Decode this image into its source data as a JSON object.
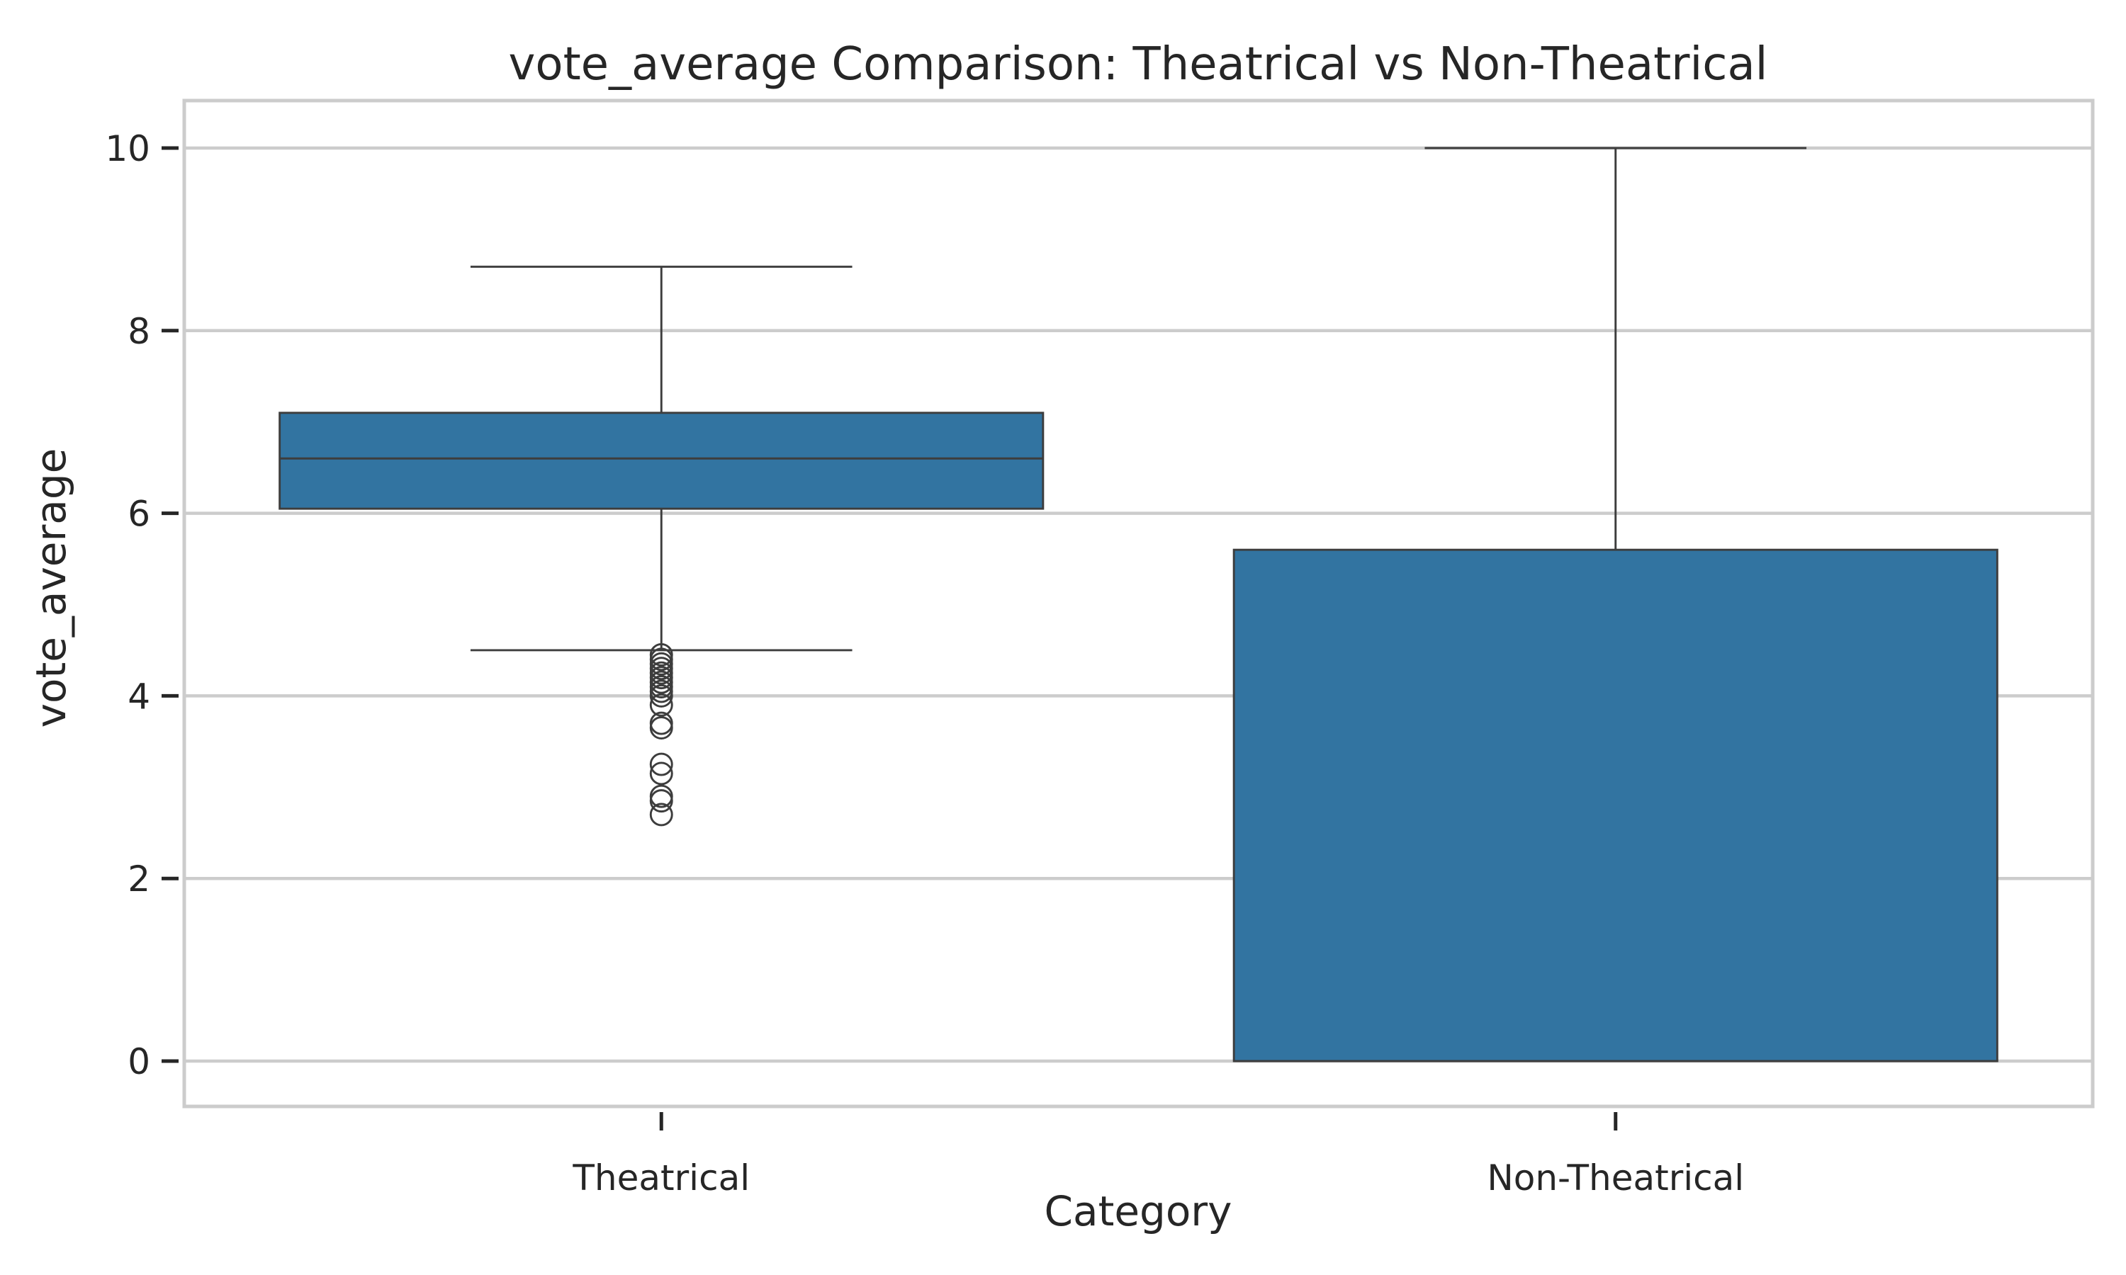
{
  "chart_data": {
    "type": "box",
    "title": "vote_average Comparison: Theatrical vs Non-Theatrical",
    "xlabel": "Category",
    "ylabel": "vote_average",
    "categories": [
      "Theatrical",
      "Non-Theatrical"
    ],
    "y_ticks": [
      0,
      2,
      4,
      6,
      8,
      10
    ],
    "y_tick_labels": [
      "0",
      "2",
      "4",
      "6",
      "8",
      "10"
    ],
    "ylim": [
      -0.5,
      10.5
    ],
    "grid": true,
    "boxes": [
      {
        "category": "Theatrical",
        "whisker_low": 4.5,
        "q1": 6.05,
        "median": 6.6,
        "q3": 7.1,
        "whisker_high": 8.7,
        "outliers": [
          4.45,
          4.4,
          4.35,
          4.3,
          4.25,
          4.2,
          4.15,
          4.1,
          4.05,
          4.0,
          3.9,
          3.7,
          3.65,
          3.25,
          3.15,
          2.9,
          2.85,
          2.7
        ]
      },
      {
        "category": "Non-Theatrical",
        "whisker_low": 0,
        "q1": 0,
        "median": 0,
        "q3": 5.6,
        "whisker_high": 10,
        "outliers": []
      }
    ],
    "colors": {
      "box_fill": "#3274a1",
      "line": "#3d3d3d",
      "grid": "#cccccc"
    }
  }
}
